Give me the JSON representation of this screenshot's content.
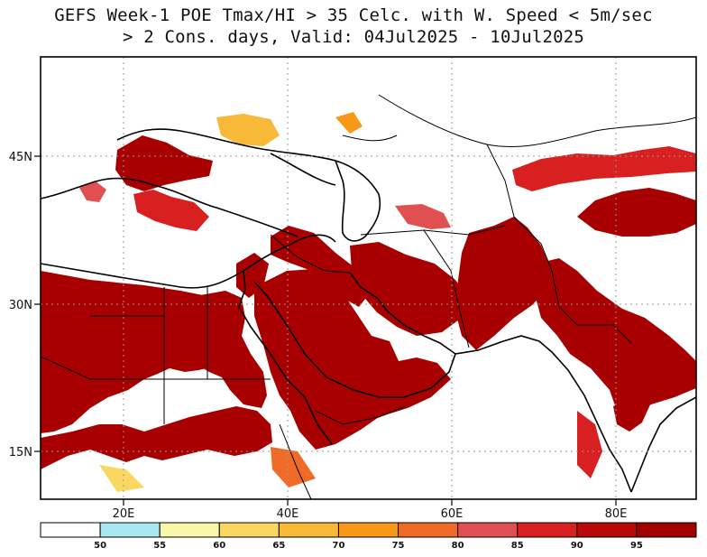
{
  "title": {
    "line1": "GEFS Week-1 POE Tmax/HI > 35 Celc. with W. Speed < 5m/sec",
    "line2": "> 2 Cons. days, Valid: 04Jul2025 - 10Jul2025"
  },
  "map": {
    "lon_labels": [
      "20E",
      "40E",
      "60E",
      "80E"
    ],
    "lat_labels": [
      "45N",
      "30N",
      "15N"
    ]
  },
  "colorbar": {
    "bins": [
      {
        "color": "#ffffff"
      },
      {
        "color": "#a8e8f0"
      },
      {
        "color": "#f8f8a8"
      },
      {
        "color": "#f8d860"
      },
      {
        "color": "#f8b838"
      },
      {
        "color": "#f89818"
      },
      {
        "color": "#f06a28"
      },
      {
        "color": "#e05050"
      },
      {
        "color": "#d82020"
      },
      {
        "color": "#b80808"
      },
      {
        "color": "#a00000"
      }
    ],
    "labels": [
      "50",
      "55",
      "60",
      "65",
      "70",
      "75",
      "80",
      "85",
      "90",
      "95"
    ]
  }
}
